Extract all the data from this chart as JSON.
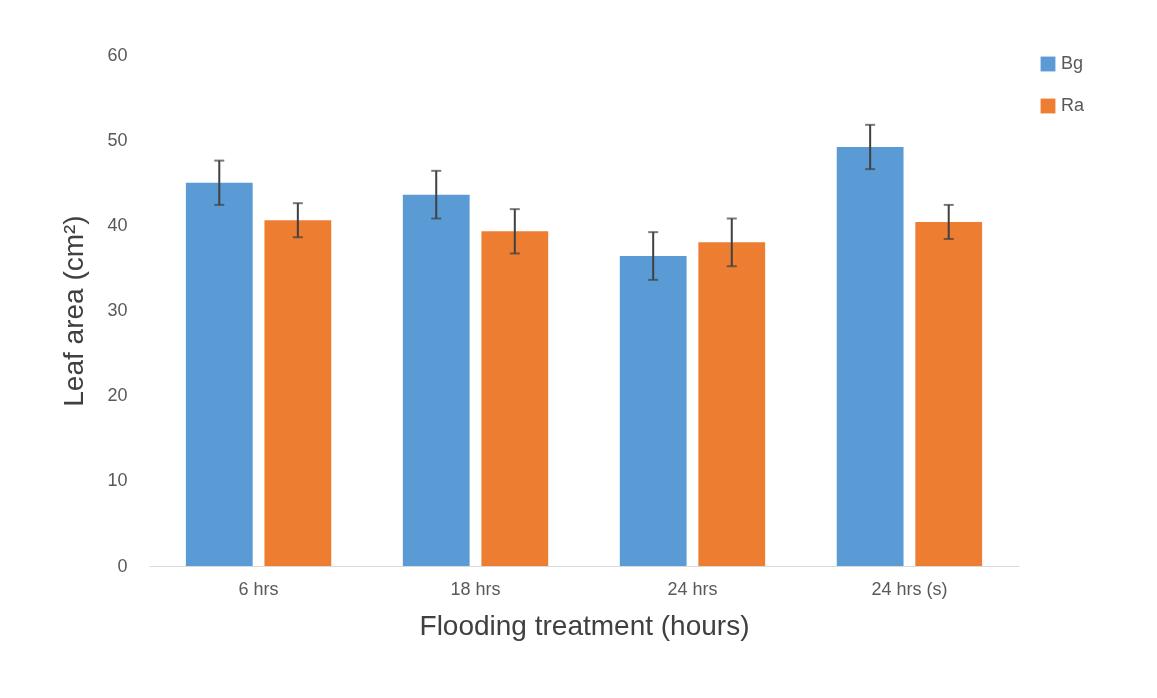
{
  "chart_data": {
    "type": "bar",
    "xlabel": "Flooding treatment (hours)",
    "ylabel": "Leaf area (cm²)",
    "categories": [
      "6 hrs",
      "18 hrs",
      "24 hrs",
      "24 hrs (s)"
    ],
    "series": [
      {
        "name": "Bg",
        "color": "#5b9bd5",
        "values": [
          45.0,
          43.6,
          36.4,
          49.2
        ],
        "errors": [
          2.6,
          2.8,
          2.8,
          2.6
        ]
      },
      {
        "name": "Ra",
        "color": "#ed7d31",
        "values": [
          40.6,
          39.3,
          38.0,
          40.4
        ],
        "errors": [
          2.0,
          2.6,
          2.8,
          2.0
        ]
      }
    ],
    "ylim": [
      0,
      60
    ],
    "yticks": [
      0,
      10,
      20,
      30,
      40,
      50,
      60
    ],
    "grid": false,
    "legend": "right"
  }
}
